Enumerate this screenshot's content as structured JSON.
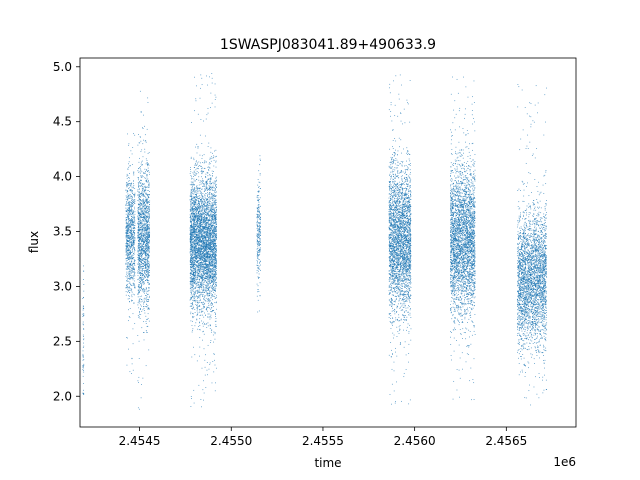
{
  "chart_data": {
    "type": "scatter",
    "title": "1SWASPJ083041.89+490633.9",
    "xlabel": "time",
    "ylabel": "flux",
    "x_offset_label": "1e6",
    "xlim": [
      2454175,
      2456880
    ],
    "ylim": [
      1.72,
      5.08
    ],
    "x_ticks": [
      2454500,
      2455000,
      2455500,
      2456000,
      2456500
    ],
    "x_tick_labels": [
      "2.4545",
      "2.4550",
      "2.4555",
      "2.4560",
      "2.4565"
    ],
    "y_ticks": [
      2.0,
      2.5,
      3.0,
      3.5,
      4.0,
      4.5,
      5.0
    ],
    "y_tick_labels": [
      "2.0",
      "2.5",
      "3.0",
      "3.5",
      "4.0",
      "4.5",
      "5.0"
    ],
    "grid": false,
    "marker_color": "#1f77b4",
    "clusters": [
      {
        "x_start": 2454190,
        "x_end": 2454196,
        "y_center": 2.6,
        "y_spread": 0.35,
        "y_min": 1.98,
        "y_max": 3.25,
        "count": 60
      },
      {
        "x_start": 2454425,
        "x_end": 2454475,
        "y_center": 3.45,
        "y_spread": 0.28,
        "y_min": 2.15,
        "y_max": 4.4,
        "count": 900
      },
      {
        "x_start": 2454490,
        "x_end": 2454555,
        "y_center": 3.45,
        "y_spread": 0.32,
        "y_min": 1.88,
        "y_max": 4.95,
        "count": 1500
      },
      {
        "x_start": 2454775,
        "x_end": 2454920,
        "y_center": 3.4,
        "y_spread": 0.3,
        "y_min": 1.9,
        "y_max": 4.95,
        "count": 4200
      },
      {
        "x_start": 2455140,
        "x_end": 2455160,
        "y_center": 3.5,
        "y_spread": 0.25,
        "y_min": 2.75,
        "y_max": 4.25,
        "count": 250
      },
      {
        "x_start": 2455860,
        "x_end": 2455980,
        "y_center": 3.42,
        "y_spread": 0.33,
        "y_min": 1.92,
        "y_max": 4.95,
        "count": 3000
      },
      {
        "x_start": 2456195,
        "x_end": 2456330,
        "y_center": 3.42,
        "y_spread": 0.33,
        "y_min": 1.95,
        "y_max": 4.95,
        "count": 3200
      },
      {
        "x_start": 2456560,
        "x_end": 2456720,
        "y_center": 3.05,
        "y_spread": 0.3,
        "y_min": 1.88,
        "y_max": 4.85,
        "count": 3000
      }
    ]
  }
}
